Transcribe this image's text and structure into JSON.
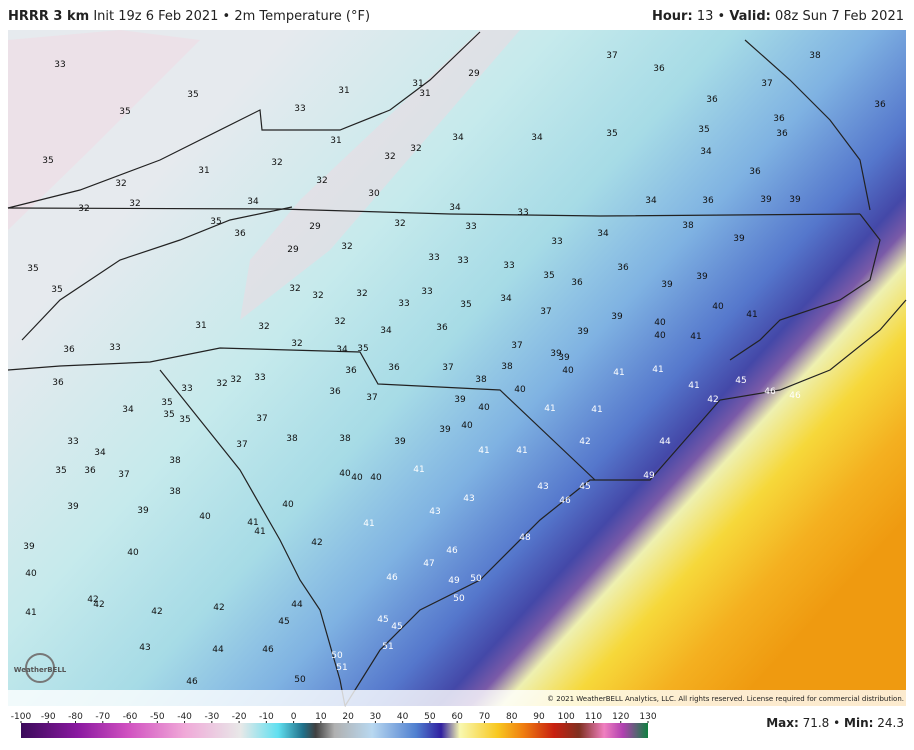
{
  "header": {
    "model": "HRRR 3 km",
    "init": "Init 19z 6 Feb 2021",
    "separator": "•",
    "field": "2m Temperature (°F)",
    "hour_label": "Hour:",
    "hour": "13",
    "valid_label": "Valid:",
    "valid": "08z Sun 7 Feb 2021"
  },
  "map": {
    "logo": "WeatherBELL",
    "copyright": "© 2021 WeatherBELL Analytics, LLC. All rights reserved. License required for commercial distribution.",
    "values": [
      33,
      35,
      35,
      35,
      32,
      32,
      32,
      31,
      32,
      33,
      31,
      31,
      31,
      31,
      29,
      32,
      32,
      34,
      34,
      37,
      36,
      35,
      36,
      35,
      34,
      37,
      38,
      36,
      36,
      36,
      36,
      32,
      30,
      34,
      35,
      36,
      29,
      29,
      32,
      32,
      34,
      33,
      33,
      33,
      34,
      34,
      38,
      36,
      39,
      39,
      39,
      33,
      33,
      33,
      35,
      36,
      36,
      35,
      35,
      32,
      32,
      32,
      33,
      33,
      35,
      34,
      37,
      39,
      39,
      39,
      39,
      40,
      40,
      40,
      41,
      41,
      31,
      32,
      32,
      34,
      36,
      37,
      39,
      39,
      40,
      41,
      41,
      41,
      42,
      45,
      46,
      46,
      36,
      33,
      32,
      34,
      35,
      36,
      36,
      37,
      38,
      38,
      40,
      36,
      34,
      33,
      32,
      32,
      33,
      36,
      37,
      39,
      40,
      41,
      41,
      35,
      35,
      35,
      33,
      34,
      35,
      36,
      37,
      38,
      37,
      37,
      38,
      38,
      39,
      39,
      40,
      41,
      41,
      42,
      44,
      40,
      40,
      40,
      41,
      43,
      45,
      46,
      49,
      38,
      40,
      39,
      39,
      40,
      41,
      41,
      43,
      43,
      41,
      42,
      39,
      40,
      40,
      46,
      48,
      47,
      49,
      50,
      46,
      50,
      41,
      42,
      42,
      42,
      42,
      44,
      45,
      45,
      45,
      51,
      43,
      44,
      46,
      50,
      51,
      50,
      46
    ]
  },
  "colorbar": {
    "ticks": [
      -100,
      -90,
      -80,
      -70,
      -60,
      -50,
      -40,
      -30,
      -20,
      -10,
      0,
      10,
      20,
      30,
      40,
      50,
      60,
      70,
      80,
      90,
      100,
      110,
      120,
      130
    ]
  },
  "footer": {
    "max_label": "Max:",
    "max": 71.8,
    "min_label": "Min:",
    "min": 24.3
  }
}
